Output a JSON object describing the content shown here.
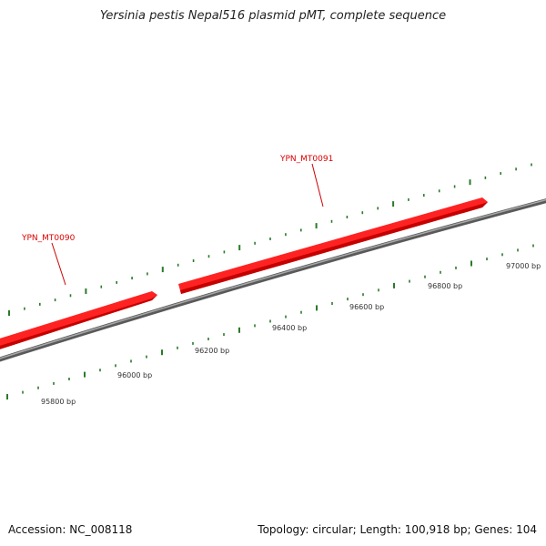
{
  "title": "Yersinia pestis Nepal516 plasmid pMT, complete sequence",
  "footer": {
    "accession": "Accession: NC_008118",
    "summary": "Topology: circular; Length: 100,918 bp; Genes: 104"
  },
  "colors": {
    "gene_fill": "#ff2222",
    "gene_dark": "#b50000",
    "backbone": "#808080",
    "tick": "#2a7a2a",
    "gene_label": "#dd0000"
  },
  "genes": [
    {
      "name": "YPN_MT0090",
      "strand": "+"
    },
    {
      "name": "YPN_MT0091",
      "strand": "+"
    }
  ],
  "scale_labels": [
    "95800 bp",
    "96000 bp",
    "96200 bp",
    "96400 bp",
    "96600 bp",
    "96800 bp",
    "97000 bp"
  ]
}
